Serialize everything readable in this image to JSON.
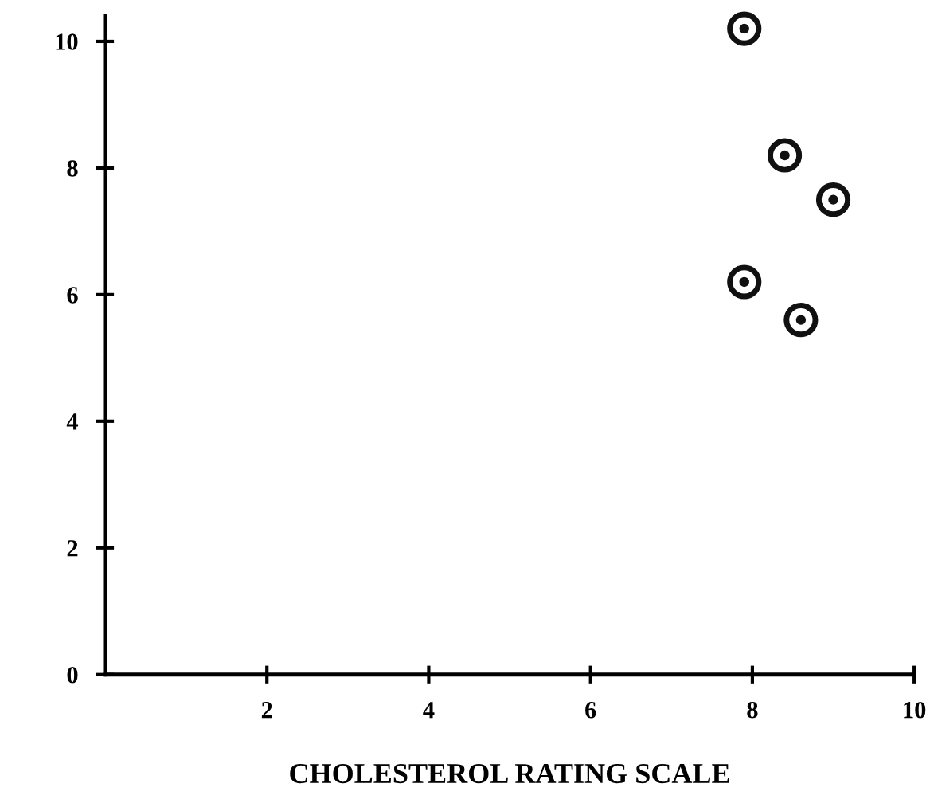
{
  "chart_data": {
    "type": "scatter",
    "xlabel": "CHOLESTEROL RATING SCALE",
    "x": [
      7.9,
      8.4,
      9.0,
      7.9,
      8.6
    ],
    "values": [
      10.2,
      8.2,
      7.5,
      6.2,
      5.6
    ],
    "color": "#111111",
    "marker": "circle",
    "xlim": [
      0,
      10
    ],
    "ylim": [
      0,
      10.4
    ],
    "xticks": [
      2,
      4,
      6,
      8,
      10
    ],
    "yticks": [
      0,
      2,
      4,
      6,
      8,
      10
    ],
    "grid": false,
    "legend": false
  }
}
